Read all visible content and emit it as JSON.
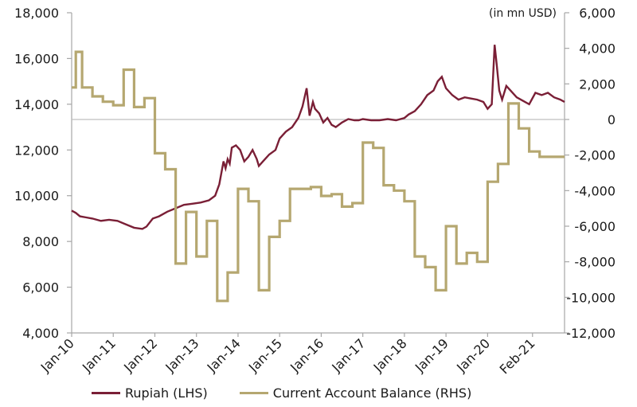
{
  "chart_data": {
    "type": "line",
    "unit_label": "(in mn USD)",
    "x_ticks": [
      "Jan-10",
      "Jan-11",
      "Jan-12",
      "Jan-13",
      "Jan-14",
      "Jan-15",
      "Jan-16",
      "Jan-17",
      "Jan-18",
      "Jan-19",
      "Jan-20",
      "Feb-21"
    ],
    "x_tick_positions": [
      2010.0,
      2011.0,
      2012.0,
      2013.0,
      2014.0,
      2015.0,
      2016.0,
      2017.0,
      2018.0,
      2019.0,
      2020.0,
      2021.08
    ],
    "xlim": [
      2010.0,
      2021.85
    ],
    "y_left": {
      "lim": [
        4000,
        18000
      ],
      "ticks": [
        "4,000",
        "6,000",
        "8,000",
        "10,000",
        "12,000",
        "14,000",
        "16,000",
        "18,000"
      ],
      "tick_values": [
        4000,
        6000,
        8000,
        10000,
        12000,
        14000,
        16000,
        18000
      ]
    },
    "y_right": {
      "lim": [
        -12000,
        6000
      ],
      "ticks": [
        "-12,000",
        "-10,000",
        "-8,000",
        "-6,000",
        "-4,000",
        "-2,000",
        "0",
        "2,000",
        "4,000",
        "6,000"
      ],
      "tick_values": [
        -12000,
        -10000,
        -8000,
        -6000,
        -4000,
        -2000,
        0,
        2000,
        4000,
        6000
      ]
    },
    "zero_line": true,
    "grid": false,
    "legend_position": "bottom",
    "series": [
      {
        "name": "Rupiah (LHS)",
        "axis": "left",
        "color": "#7a1f36",
        "x": [
          2010.0,
          2010.1,
          2010.2,
          2010.35,
          2010.5,
          2010.7,
          2010.9,
          2011.1,
          2011.3,
          2011.5,
          2011.7,
          2011.8,
          2011.95,
          2012.1,
          2012.3,
          2012.5,
          2012.7,
          2012.9,
          2013.1,
          2013.3,
          2013.45,
          2013.55,
          2013.65,
          2013.7,
          2013.75,
          2013.8,
          2013.85,
          2013.95,
          2014.05,
          2014.15,
          2014.25,
          2014.35,
          2014.45,
          2014.5,
          2014.6,
          2014.75,
          2014.9,
          2015.0,
          2015.15,
          2015.3,
          2015.45,
          2015.55,
          2015.65,
          2015.72,
          2015.8,
          2015.85,
          2015.95,
          2016.05,
          2016.15,
          2016.25,
          2016.35,
          2016.5,
          2016.65,
          2016.8,
          2016.9,
          2017.0,
          2017.2,
          2017.4,
          2017.6,
          2017.8,
          2018.0,
          2018.1,
          2018.25,
          2018.4,
          2018.55,
          2018.7,
          2018.8,
          2018.9,
          2019.0,
          2019.15,
          2019.3,
          2019.45,
          2019.6,
          2019.75,
          2019.9,
          2020.0,
          2020.1,
          2020.17,
          2020.22,
          2020.28,
          2020.35,
          2020.45,
          2020.55,
          2020.7,
          2020.85,
          2021.0,
          2021.15,
          2021.3,
          2021.45,
          2021.6,
          2021.75,
          2021.85
        ],
        "values": [
          9350,
          9250,
          9100,
          9050,
          9000,
          8900,
          8950,
          8900,
          8750,
          8600,
          8550,
          8650,
          9000,
          9100,
          9300,
          9450,
          9600,
          9650,
          9700,
          9800,
          10000,
          10500,
          11500,
          11200,
          11600,
          11400,
          12100,
          12200,
          12000,
          11500,
          11700,
          12000,
          11600,
          11300,
          11500,
          11800,
          12000,
          12500,
          12800,
          13000,
          13400,
          13900,
          14700,
          13500,
          14100,
          13800,
          13600,
          13200,
          13400,
          13100,
          13000,
          13200,
          13350,
          13300,
          13300,
          13350,
          13300,
          13300,
          13350,
          13300,
          13400,
          13550,
          13700,
          14000,
          14400,
          14600,
          15000,
          15200,
          14700,
          14400,
          14200,
          14300,
          14250,
          14200,
          14100,
          13800,
          14000,
          16600,
          15700,
          14600,
          14200,
          14800,
          14600,
          14300,
          14150,
          14000,
          14500,
          14400,
          14500,
          14300,
          14200,
          14100
        ]
      },
      {
        "name": "Current Account Balance (RHS)",
        "axis": "right",
        "color": "#b5a770",
        "step": true,
        "x": [
          2010.0,
          2010.1,
          2010.25,
          2010.5,
          2010.75,
          2011.0,
          2011.25,
          2011.5,
          2011.75,
          2012.0,
          2012.25,
          2012.5,
          2012.75,
          2013.0,
          2013.25,
          2013.5,
          2013.75,
          2014.0,
          2014.25,
          2014.5,
          2014.75,
          2015.0,
          2015.25,
          2015.5,
          2015.75,
          2016.0,
          2016.25,
          2016.5,
          2016.75,
          2017.0,
          2017.25,
          2017.5,
          2017.75,
          2018.0,
          2018.25,
          2018.5,
          2018.75,
          2019.0,
          2019.25,
          2019.5,
          2019.75,
          2020.0,
          2020.25,
          2020.5,
          2020.75,
          2021.0,
          2021.25,
          2021.5,
          2021.85
        ],
        "values": [
          1800,
          3800,
          1800,
          1300,
          1000,
          800,
          2800,
          700,
          1200,
          -1900,
          -2800,
          -8100,
          -5200,
          -7700,
          -5700,
          -10200,
          -8600,
          -3900,
          -4600,
          -9600,
          -6600,
          -5700,
          -3900,
          -3900,
          -3800,
          -4300,
          -4200,
          -4900,
          -4700,
          -1300,
          -1600,
          -3700,
          -4000,
          -4600,
          -7700,
          -8300,
          -9600,
          -6000,
          -8100,
          -7500,
          -8000,
          -3500,
          -2500,
          900,
          -500,
          -1800,
          -2100,
          -2100,
          -2100
        ]
      }
    ]
  },
  "legend": {
    "item1": "Rupiah (LHS)",
    "item2": "Current Account Balance (RHS)"
  },
  "colors": {
    "rupiah": "#7a1f36",
    "current_account": "#b5a770",
    "axis": "#a6a6a6",
    "zero_line": "#bfbfbf"
  }
}
